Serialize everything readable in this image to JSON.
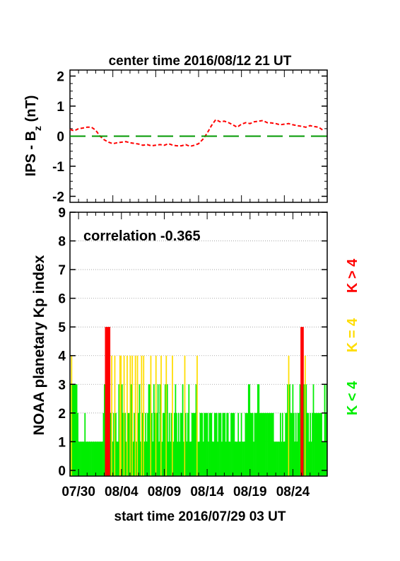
{
  "top_title": "center time 2016/08/12 21 UT",
  "bottom_title": "start time 2016/07/29 03 UT",
  "colors": {
    "red": "#ff0000",
    "yellow": "#ffdd00",
    "green": "#00ee00",
    "dashed_green": "#009900"
  },
  "legend": {
    "k_lt4": "K < 4",
    "k_eq4": "K = 4",
    "k_gt4": "K > 4"
  },
  "chart_data": [
    {
      "type": "line",
      "title": "center time 2016/08/12 21 UT",
      "ylabel_main": "IPS - B",
      "ylabel_sub": "z",
      "ylabel_unit": " (nT)",
      "ylim": [
        -2.2,
        2.2
      ],
      "yticks": [
        "2",
        "1",
        "0",
        "-1",
        "-2"
      ],
      "xlim": [
        0,
        30
      ],
      "grid": false,
      "series": [
        {
          "style": "dashed",
          "color": "#ff0000",
          "x": [
            0,
            0.5,
            1,
            1.5,
            2,
            2.5,
            3,
            3.5,
            4,
            4.5,
            5,
            5.5,
            6,
            6.5,
            7,
            7.5,
            8,
            8.5,
            9,
            9.5,
            10,
            10.5,
            11,
            11.5,
            12,
            12.5,
            13,
            13.5,
            14,
            14.5,
            15,
            15.5,
            16,
            16.5,
            17,
            17.5,
            18,
            18.5,
            19,
            19.5,
            20,
            20.5,
            21,
            21.5,
            22,
            22.5,
            23,
            23.5,
            24,
            24.5,
            25,
            25.5,
            26,
            26.5,
            27,
            27.5,
            28,
            28.5,
            29,
            29.5
          ],
          "y": [
            0.22,
            0.18,
            0.25,
            0.27,
            0.3,
            0.3,
            0.2,
            0.0,
            -0.12,
            -0.2,
            -0.25,
            -0.22,
            -0.2,
            -0.18,
            -0.22,
            -0.24,
            -0.26,
            -0.3,
            -0.28,
            -0.32,
            -0.3,
            -0.28,
            -0.3,
            -0.25,
            -0.3,
            -0.32,
            -0.32,
            -0.28,
            -0.34,
            -0.3,
            -0.25,
            -0.1,
            0.1,
            0.35,
            0.55,
            0.48,
            0.5,
            0.45,
            0.38,
            0.3,
            0.4,
            0.45,
            0.42,
            0.48,
            0.5,
            0.52,
            0.45,
            0.44,
            0.42,
            0.38,
            0.4,
            0.42,
            0.38,
            0.35,
            0.33,
            0.3,
            0.35,
            0.32,
            0.3,
            0.2
          ]
        },
        {
          "style": "dashed",
          "color": "#009900",
          "x": [
            0,
            30
          ],
          "y": [
            0,
            0
          ]
        }
      ]
    },
    {
      "type": "bar",
      "ylabel": "NOAA planetary Kp index",
      "xlabel": "start time 2016/07/29 03 UT",
      "annotation": "correlation -0.365",
      "ylim": [
        -0.2,
        9
      ],
      "yticks": [
        "0",
        "1",
        "2",
        "3",
        "4",
        "5",
        "6",
        "7",
        "8",
        "9"
      ],
      "xlim": [
        0,
        30
      ],
      "xticks": [
        "07/30",
        "08/04",
        "08/09",
        "08/14",
        "08/19",
        "08/24"
      ],
      "grid": "horizontal dotted",
      "kp": [
        3,
        4,
        3,
        3,
        3,
        3,
        3,
        2,
        1,
        1,
        1,
        1,
        1,
        1,
        2,
        1,
        1,
        1,
        1,
        1,
        1,
        1,
        1,
        1,
        1,
        1,
        1,
        1,
        1,
        1,
        1,
        1,
        2,
        3,
        5,
        5,
        5,
        5,
        5,
        2,
        4,
        1,
        2,
        4,
        2,
        1,
        1,
        3,
        4,
        4,
        3,
        2,
        4,
        2,
        1,
        4,
        2,
        2,
        4,
        3,
        4,
        1,
        2,
        4,
        1,
        4,
        2,
        3,
        1,
        4,
        2,
        4,
        1,
        2,
        1,
        2,
        3,
        3,
        4,
        2,
        1,
        3,
        2,
        4,
        2,
        3,
        1,
        3,
        4,
        1,
        2,
        2,
        3,
        4,
        3,
        1,
        2,
        1,
        2,
        4,
        1,
        2,
        3,
        2,
        1,
        2,
        1,
        2,
        2,
        3,
        1,
        4,
        2,
        1,
        2,
        3,
        1,
        1,
        2,
        2,
        2,
        2,
        3,
        4,
        1,
        1,
        2,
        2,
        2,
        1,
        2,
        2,
        2,
        2,
        1,
        2,
        2,
        2,
        1,
        1,
        2,
        2,
        2,
        1,
        2,
        2,
        2,
        1,
        2,
        2,
        2,
        1,
        2,
        2,
        1,
        1,
        2,
        2,
        2,
        2,
        1,
        1,
        1,
        2,
        1,
        1,
        2,
        1,
        1,
        1,
        2,
        2,
        2,
        3,
        3,
        2,
        2,
        2,
        1,
        2,
        2,
        2,
        3,
        3,
        2,
        2,
        2,
        2,
        2,
        2,
        2,
        2,
        2,
        2,
        2,
        2,
        2,
        2,
        1,
        1,
        1,
        1,
        1,
        1,
        2,
        1,
        2,
        1,
        1,
        2,
        2,
        3,
        4,
        3,
        2,
        2,
        3,
        2,
        1,
        2,
        1,
        2,
        2,
        3,
        5,
        5,
        5,
        3,
        4,
        3,
        2,
        2,
        1,
        2,
        1,
        2,
        3,
        2,
        2,
        2,
        2,
        2,
        2,
        2,
        2,
        1,
        1,
        3,
        2,
        3
      ]
    }
  ]
}
